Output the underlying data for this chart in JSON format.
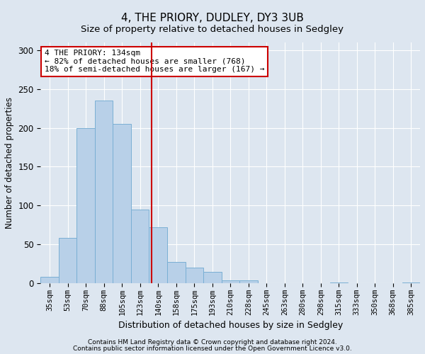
{
  "title1": "4, THE PRIORY, DUDLEY, DY3 3UB",
  "title2": "Size of property relative to detached houses in Sedgley",
  "xlabel": "Distribution of detached houses by size in Sedgley",
  "ylabel": "Number of detached properties",
  "categories": [
    "35sqm",
    "53sqm",
    "70sqm",
    "88sqm",
    "105sqm",
    "123sqm",
    "140sqm",
    "158sqm",
    "175sqm",
    "193sqm",
    "210sqm",
    "228sqm",
    "245sqm",
    "263sqm",
    "280sqm",
    "298sqm",
    "315sqm",
    "333sqm",
    "350sqm",
    "368sqm",
    "385sqm"
  ],
  "values": [
    8,
    58,
    200,
    235,
    205,
    95,
    72,
    27,
    20,
    15,
    4,
    4,
    0,
    0,
    0,
    0,
    1,
    0,
    0,
    0,
    1
  ],
  "bar_color": "#b8d0e8",
  "bar_edge_color": "#7aafd4",
  "bg_color": "#dde6f0",
  "grid_color": "#ffffff",
  "vline_color": "#cc0000",
  "annotation_line1": "4 THE PRIORY: 134sqm",
  "annotation_line2": "← 82% of detached houses are smaller (768)",
  "annotation_line3": "18% of semi-detached houses are larger (167) →",
  "annotation_box_color": "#ffffff",
  "annotation_box_edge_color": "#cc0000",
  "footer1": "Contains HM Land Registry data © Crown copyright and database right 2024.",
  "footer2": "Contains public sector information licensed under the Open Government Licence v3.0.",
  "ylim": [
    0,
    310
  ],
  "title1_fontsize": 11,
  "title2_fontsize": 9.5,
  "xlabel_fontsize": 9,
  "ylabel_fontsize": 8.5,
  "tick_fontsize": 7.5,
  "annotation_fontsize": 8,
  "footer_fontsize": 6.5
}
